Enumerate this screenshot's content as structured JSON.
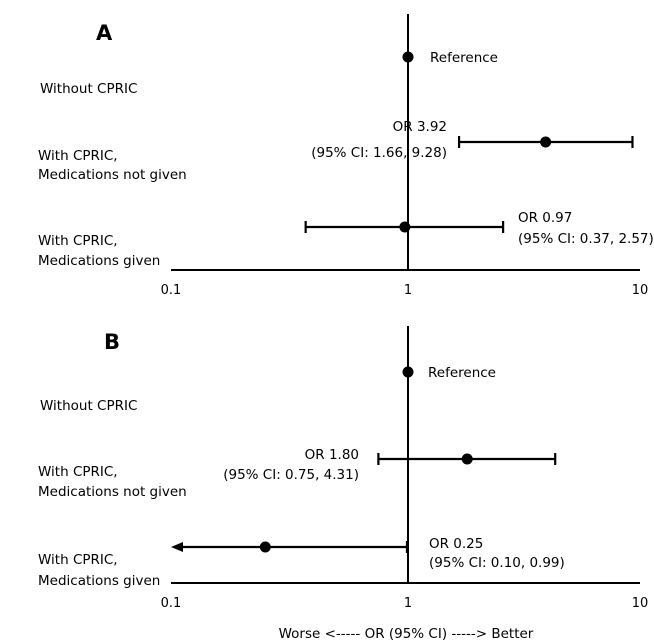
{
  "chart_data": [
    {
      "type": "forest",
      "panel": "A",
      "x_scale": "log",
      "xlim": [
        0.1,
        10
      ],
      "x_ticks": [
        "0.1",
        "1",
        "10"
      ],
      "rows": [
        {
          "label_lines": [
            "Without CPRIC"
          ],
          "estimate": 1,
          "ci": null,
          "annotation_lines": [
            "Reference"
          ]
        },
        {
          "label_lines": [
            "With CPRIC,",
            "Medications not given"
          ],
          "estimate": 3.92,
          "ci": [
            1.66,
            9.28
          ],
          "annotation_lines": [
            "OR 3.92",
            "(95% CI: 1.66, 9.28)"
          ]
        },
        {
          "label_lines": [
            "With CPRIC,",
            "Medications given"
          ],
          "estimate": 0.97,
          "ci": [
            0.37,
            2.57
          ],
          "annotation_lines": [
            "OR 0.97",
            "(95% CI: 0.37, 2.57)"
          ]
        }
      ]
    },
    {
      "type": "forest",
      "panel": "B",
      "x_scale": "log",
      "xlim": [
        0.1,
        10
      ],
      "x_ticks": [
        "0.1",
        "1",
        "10"
      ],
      "xlabel": "Worse <----- OR (95% CI) -----> Better",
      "rows": [
        {
          "label_lines": [
            "Without CPRIC"
          ],
          "estimate": 1,
          "ci": null,
          "annotation_lines": [
            "Reference"
          ]
        },
        {
          "label_lines": [
            "With CPRIC,",
            "Medications not given"
          ],
          "estimate": 1.8,
          "ci": [
            0.75,
            4.31
          ],
          "annotation_lines": [
            "OR 1.80",
            "(95% CI: 0.75, 4.31)"
          ]
        },
        {
          "label_lines": [
            "With CPRIC,",
            "Medications given"
          ],
          "estimate": 0.25,
          "ci": [
            0.1,
            0.99
          ],
          "ci_lower_truncated": true,
          "annotation_lines": [
            "OR 0.25",
            "(95% CI: 0.10, 0.99)"
          ]
        }
      ]
    }
  ]
}
